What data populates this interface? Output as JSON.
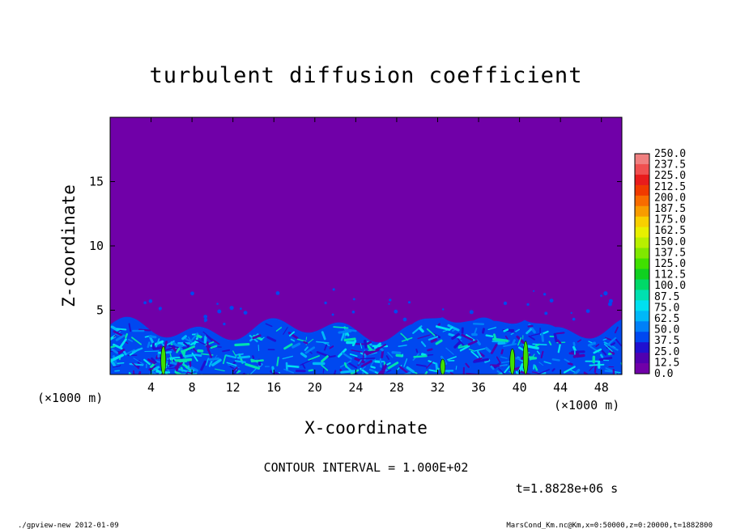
{
  "chart_data": {
    "type": "heatmap",
    "title": "turbulent diffusion coefficient",
    "xlabel": "X-coordinate",
    "ylabel": "Z-coordinate",
    "x_unit": "(×1000 m)",
    "y_unit": "(×1000 m)",
    "xlim": [
      0,
      50
    ],
    "ylim": [
      0,
      20
    ],
    "x_ticks": [
      4,
      8,
      12,
      16,
      20,
      24,
      28,
      32,
      36,
      40,
      44,
      48
    ],
    "y_ticks": [
      5,
      10,
      15
    ],
    "colorbar_levels": [
      "250.0",
      "237.5",
      "225.0",
      "212.5",
      "200.0",
      "187.5",
      "175.0",
      "162.5",
      "150.0",
      "137.5",
      "125.0",
      "112.5",
      "100.0",
      "87.5",
      "75.0",
      "62.5",
      "50.0",
      "37.5",
      "25.0",
      "12.5",
      "0.0"
    ],
    "colorbar_colors": [
      "#f08080",
      "#f05050",
      "#e81c1c",
      "#f03a00",
      "#f86c00",
      "#f89c00",
      "#f8d000",
      "#e8f000",
      "#b8f000",
      "#80e800",
      "#40e000",
      "#10d020",
      "#00d868",
      "#00e0b0",
      "#00e0f0",
      "#00b8f8",
      "#0080f8",
      "#0048f0",
      "#2010d0",
      "#5000b0",
      "#7000a8"
    ],
    "contour_interval": "CONTOUR INTERVAL = 1.000E+02",
    "time_label": "t=1.8828e+06 s",
    "boundary_layer_height_approx": 3.5
  },
  "footer": {
    "left": "./gpview-new  2012-01-09",
    "right": "MarsCond_Km.nc@Km,x=0:50000,z=0:20000,t=1882800"
  },
  "colors": {
    "background_field": "#7000a8",
    "mixed_layer_low": "#0048f0",
    "mixed_layer_high": "#00e0f0"
  }
}
